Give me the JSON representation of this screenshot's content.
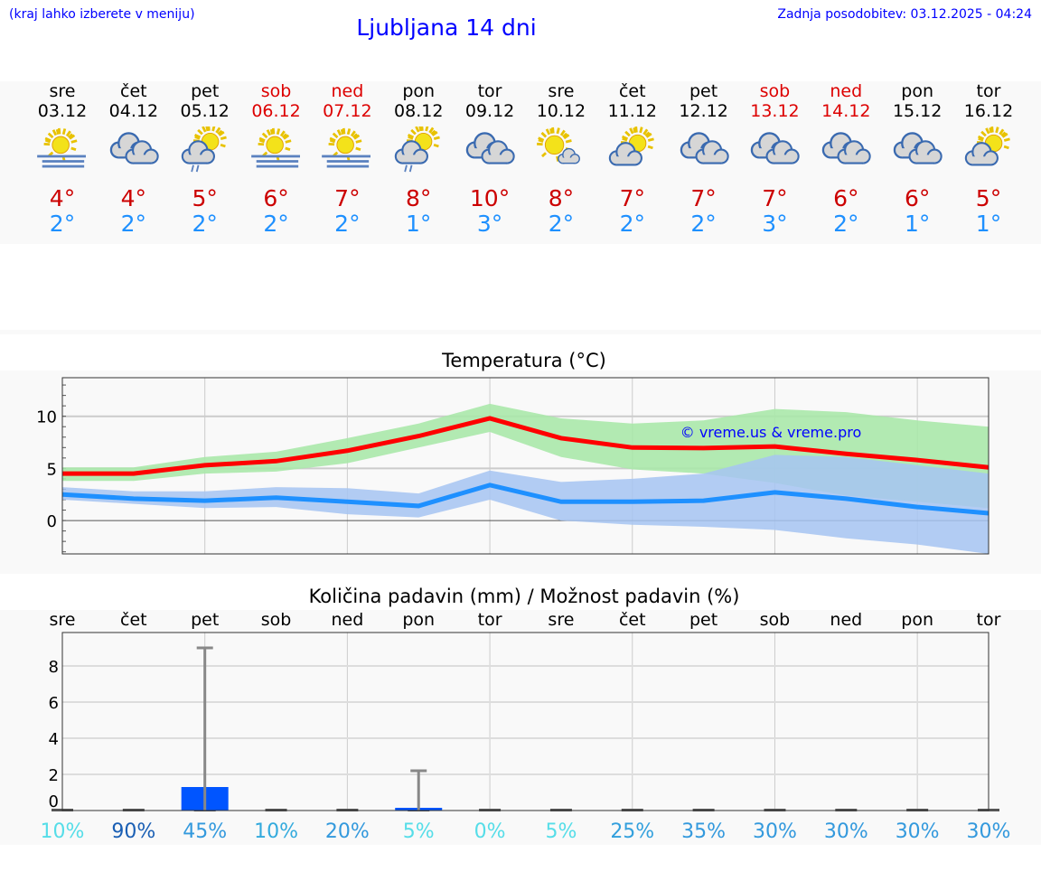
{
  "header": {
    "hint": "(kraj lahko izberete v meniju)",
    "title": "Ljubljana 14 dni",
    "updated": "Zadnja posodobitev: 03.12.2025 - 04:24"
  },
  "days": [
    {
      "name": "sre",
      "date": "03.12",
      "weekend": false,
      "icon": "sun-fog-icon",
      "max": "4°",
      "min": "2°"
    },
    {
      "name": "čet",
      "date": "04.12",
      "weekend": false,
      "icon": "cloudy-icon",
      "max": "4°",
      "min": "2°"
    },
    {
      "name": "pet",
      "date": "05.12",
      "weekend": false,
      "icon": "sun-cloud-rain-icon",
      "max": "5°",
      "min": "2°"
    },
    {
      "name": "sob",
      "date": "06.12",
      "weekend": true,
      "icon": "sun-fog-icon",
      "max": "6°",
      "min": "2°"
    },
    {
      "name": "ned",
      "date": "07.12",
      "weekend": true,
      "icon": "sun-fog-icon",
      "max": "7°",
      "min": "2°"
    },
    {
      "name": "pon",
      "date": "08.12",
      "weekend": false,
      "icon": "sun-cloud-rain-icon",
      "max": "8°",
      "min": "1°"
    },
    {
      "name": "tor",
      "date": "09.12",
      "weekend": false,
      "icon": "cloudy-icon",
      "max": "10°",
      "min": "3°"
    },
    {
      "name": "sre",
      "date": "10.12",
      "weekend": false,
      "icon": "sun-small-cloud-icon",
      "max": "8°",
      "min": "2°"
    },
    {
      "name": "čet",
      "date": "11.12",
      "weekend": false,
      "icon": "sun-cloud-icon",
      "max": "7°",
      "min": "2°"
    },
    {
      "name": "pet",
      "date": "12.12",
      "weekend": false,
      "icon": "cloudy-icon",
      "max": "7°",
      "min": "2°"
    },
    {
      "name": "sob",
      "date": "13.12",
      "weekend": true,
      "icon": "cloudy-icon",
      "max": "7°",
      "min": "3°"
    },
    {
      "name": "ned",
      "date": "14.12",
      "weekend": true,
      "icon": "cloudy-icon",
      "max": "6°",
      "min": "2°"
    },
    {
      "name": "pon",
      "date": "15.12",
      "weekend": false,
      "icon": "cloudy-icon",
      "max": "6°",
      "min": "1°"
    },
    {
      "name": "tor",
      "date": "16.12",
      "weekend": false,
      "icon": "sun-cloud-icon",
      "max": "5°",
      "min": "1°"
    }
  ],
  "chart_data": [
    {
      "type": "line",
      "title": "Temperatura (°C)",
      "ylim": [
        -3.2,
        13.7
      ],
      "yticks": [
        0,
        5,
        10
      ],
      "grid": true,
      "watermark": "© vreme.us & vreme.pro",
      "series": [
        {
          "kind": "max",
          "color": "#ff0000",
          "values": [
            4.5,
            4.5,
            5.3,
            5.7,
            6.7,
            8.1,
            9.8,
            7.9,
            7.0,
            6.95,
            7.1,
            6.4,
            5.8,
            5.1
          ],
          "band_color": "#aae8aa",
          "band_high": [
            5.1,
            5.1,
            6.1,
            6.6,
            7.9,
            9.3,
            11.2,
            9.8,
            9.3,
            9.6,
            10.7,
            10.4,
            9.6,
            9.0
          ],
          "band_low": [
            3.8,
            3.8,
            4.5,
            4.7,
            5.5,
            7.0,
            8.5,
            6.1,
            4.9,
            4.5,
            3.6,
            2.4,
            1.8,
            1.2
          ]
        },
        {
          "kind": "min",
          "color": "#1e90ff",
          "values": [
            2.5,
            2.1,
            1.9,
            2.2,
            1.8,
            1.4,
            3.4,
            1.8,
            1.8,
            1.9,
            2.7,
            2.1,
            1.3,
            0.7
          ],
          "band_color": "#a6c4f2",
          "band_high": [
            3.2,
            2.8,
            2.8,
            3.2,
            3.1,
            2.6,
            4.8,
            3.7,
            4.0,
            4.5,
            6.3,
            6.1,
            5.3,
            4.5
          ],
          "band_low": [
            2.0,
            1.6,
            1.2,
            1.3,
            0.6,
            0.3,
            2.0,
            0.0,
            -0.4,
            -0.6,
            -0.9,
            -1.7,
            -2.3,
            -3.2
          ]
        }
      ]
    },
    {
      "type": "bar",
      "title": "Količina padavin (mm) / Možnost padavin (%)",
      "ylim": [
        0,
        9.7
      ],
      "yticks": [
        0,
        2,
        4,
        6,
        8
      ],
      "grid": true,
      "categories": [
        "sre",
        "čet",
        "pet",
        "sob",
        "ned",
        "pon",
        "tor",
        "sre",
        "čet",
        "pet",
        "sob",
        "ned",
        "pon",
        "tor"
      ],
      "bar_color": "#0055ff",
      "values": [
        0,
        0,
        1.3,
        0,
        0,
        0.15,
        0,
        0,
        0,
        0,
        0,
        0,
        0,
        0
      ],
      "error_high": [
        0,
        0,
        9.0,
        0,
        0,
        2.2,
        0,
        0,
        0,
        0,
        0,
        0,
        0,
        0
      ],
      "probability": [
        "10%",
        "90%",
        "45%",
        "10%",
        "20%",
        "5%",
        "0%",
        "5%",
        "25%",
        "35%",
        "30%",
        "30%",
        "30%",
        "30%"
      ],
      "probability_colors": [
        "#55dde8",
        "#1a5fb4",
        "#3399dd",
        "#33aadd",
        "#3399dd",
        "#55dde8",
        "#55dde8",
        "#55dde8",
        "#33a0dd",
        "#3399dd",
        "#3399dd",
        "#3399dd",
        "#3399dd",
        "#3399dd"
      ]
    }
  ]
}
